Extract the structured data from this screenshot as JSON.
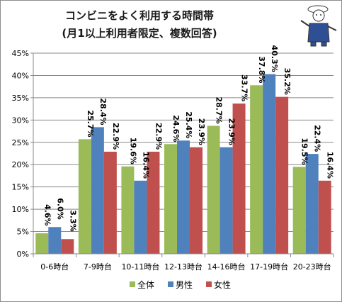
{
  "chart_data": {
    "type": "bar",
    "title_lines": [
      "コンビニをよく利用する時間帯",
      "(月1以上利用者限定、複数回答)"
    ],
    "xlabel": "",
    "ylabel": "",
    "ylim": [
      0,
      45
    ],
    "yticks": [
      "0%",
      "5%",
      "10%",
      "15%",
      "20%",
      "25%",
      "30%",
      "35%",
      "40%",
      "45%"
    ],
    "grid": true,
    "legend_position": "bottom",
    "categories": [
      "0-6時台",
      "7-9時台",
      "10-11時台",
      "12-13時台",
      "14-16時台",
      "17-19時台",
      "20-23時台"
    ],
    "series": [
      {
        "name": "全体",
        "color": "#9bbb59",
        "values": [
          4.6,
          25.7,
          19.6,
          24.6,
          28.7,
          37.8,
          19.5
        ],
        "labels": [
          "4.6%",
          "25.7%",
          "19.6%",
          "24.6%",
          "28.7%",
          "37.8%",
          "19.5%"
        ]
      },
      {
        "name": "男性",
        "color": "#4f81bd",
        "values": [
          6.0,
          28.4,
          16.4,
          25.4,
          23.9,
          40.3,
          22.4
        ],
        "labels": [
          "6.0%",
          "28.4%",
          "16.4%",
          "25.4%",
          "23.9%",
          "40.3%",
          "22.4%"
        ]
      },
      {
        "name": "女性",
        "color": "#c0504d",
        "values": [
          3.3,
          22.9,
          22.9,
          23.9,
          33.7,
          35.2,
          16.4
        ],
        "labels": [
          "3.3%",
          "22.9%",
          "22.9%",
          "23.9%",
          "33.7%",
          "35.2%",
          "16.4%"
        ]
      }
    ]
  },
  "mascot_icon": "mascot-illustration-icon"
}
